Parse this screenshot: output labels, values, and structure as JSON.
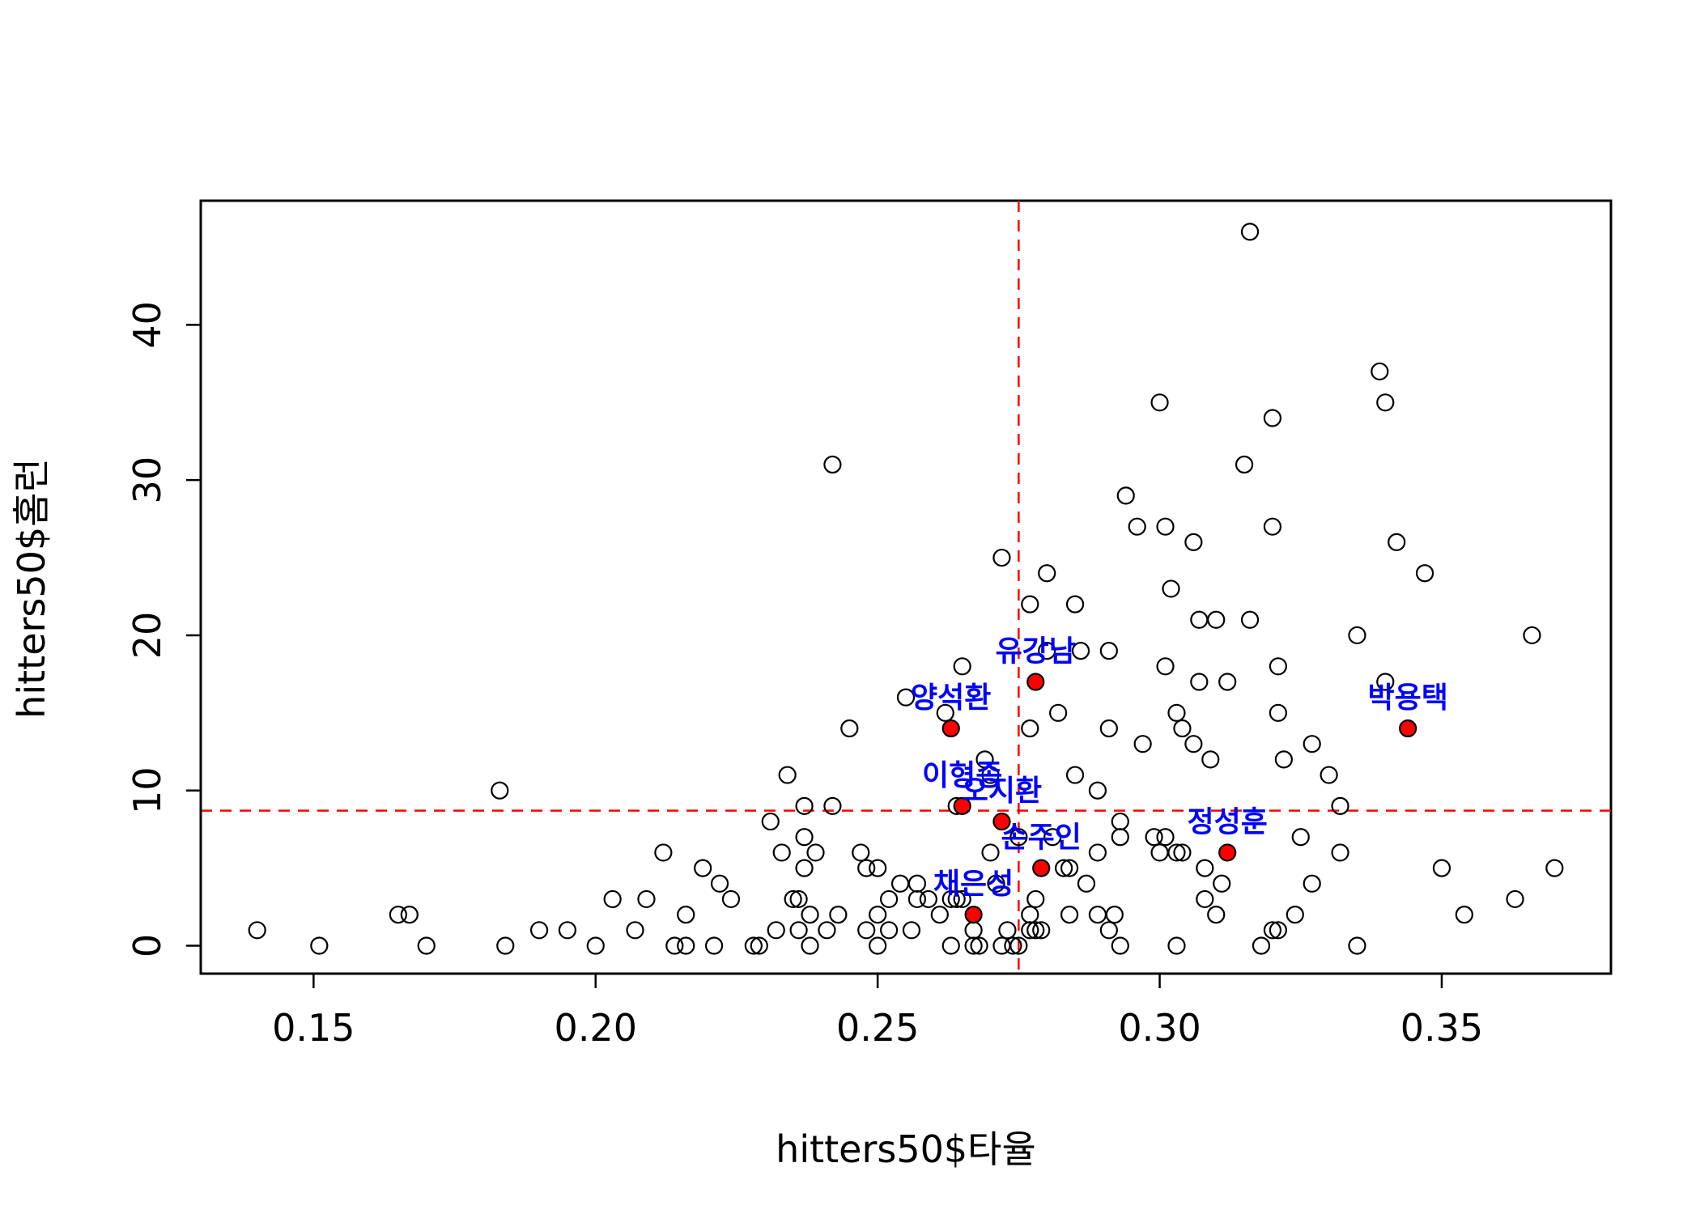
{
  "chart_data": {
    "type": "scatter",
    "title": "",
    "xlabel": "hitters50$타율",
    "ylabel": "hitters50$홈런",
    "xlim": [
      0.13,
      0.38
    ],
    "ylim": [
      -1.8,
      48
    ],
    "xticks": [
      "0.15",
      "0.20",
      "0.25",
      "0.30",
      "0.35"
    ],
    "yticks": [
      "0",
      "10",
      "20",
      "30",
      "40"
    ],
    "grid": false,
    "reference_lines": {
      "v": 0.275,
      "h": 8.7,
      "color": "#ff0000",
      "style": "dashed"
    },
    "point_style": {
      "fill": "none",
      "stroke": "#000000"
    },
    "highlight_style": {
      "fill": "#ff0000",
      "label_color": "#0000ff"
    },
    "points": [
      [
        0.14,
        1
      ],
      [
        0.151,
        0
      ],
      [
        0.165,
        2
      ],
      [
        0.167,
        2
      ],
      [
        0.17,
        0
      ],
      [
        0.183,
        10
      ],
      [
        0.184,
        0
      ],
      [
        0.19,
        1
      ],
      [
        0.195,
        1
      ],
      [
        0.2,
        0
      ],
      [
        0.203,
        3
      ],
      [
        0.207,
        1
      ],
      [
        0.209,
        3
      ],
      [
        0.212,
        6
      ],
      [
        0.214,
        0
      ],
      [
        0.216,
        2
      ],
      [
        0.216,
        0
      ],
      [
        0.219,
        5
      ],
      [
        0.221,
        0
      ],
      [
        0.222,
        4
      ],
      [
        0.224,
        3
      ],
      [
        0.228,
        0
      ],
      [
        0.229,
        0
      ],
      [
        0.231,
        8
      ],
      [
        0.232,
        1
      ],
      [
        0.233,
        6
      ],
      [
        0.234,
        11
      ],
      [
        0.235,
        3
      ],
      [
        0.236,
        3
      ],
      [
        0.236,
        1
      ],
      [
        0.237,
        9
      ],
      [
        0.237,
        7
      ],
      [
        0.237,
        5
      ],
      [
        0.238,
        2
      ],
      [
        0.238,
        0
      ],
      [
        0.239,
        6
      ],
      [
        0.241,
        1
      ],
      [
        0.242,
        9
      ],
      [
        0.242,
        31
      ],
      [
        0.243,
        2
      ],
      [
        0.245,
        14
      ],
      [
        0.247,
        6
      ],
      [
        0.248,
        5
      ],
      [
        0.248,
        1
      ],
      [
        0.25,
        5
      ],
      [
        0.25,
        2
      ],
      [
        0.25,
        0
      ],
      [
        0.252,
        3
      ],
      [
        0.252,
        1
      ],
      [
        0.254,
        4
      ],
      [
        0.255,
        16
      ],
      [
        0.256,
        1
      ],
      [
        0.257,
        3
      ],
      [
        0.257,
        4
      ],
      [
        0.259,
        3
      ],
      [
        0.261,
        2
      ],
      [
        0.262,
        15
      ],
      [
        0.263,
        0
      ],
      [
        0.263,
        3
      ],
      [
        0.264,
        9
      ],
      [
        0.264,
        3
      ],
      [
        0.265,
        18
      ],
      [
        0.265,
        3
      ],
      [
        0.267,
        1
      ],
      [
        0.267,
        0
      ],
      [
        0.268,
        0
      ],
      [
        0.269,
        12
      ],
      [
        0.27,
        6
      ],
      [
        0.27,
        11
      ],
      [
        0.271,
        4
      ],
      [
        0.272,
        25
      ],
      [
        0.272,
        0
      ],
      [
        0.273,
        1
      ],
      [
        0.274,
        0
      ],
      [
        0.275,
        0
      ],
      [
        0.275,
        7
      ],
      [
        0.277,
        2
      ],
      [
        0.277,
        22
      ],
      [
        0.277,
        14
      ],
      [
        0.277,
        1
      ],
      [
        0.278,
        3
      ],
      [
        0.278,
        1
      ],
      [
        0.279,
        1
      ],
      [
        0.28,
        24
      ],
      [
        0.28,
        19
      ],
      [
        0.281,
        7
      ],
      [
        0.282,
        15
      ],
      [
        0.283,
        5
      ],
      [
        0.284,
        2
      ],
      [
        0.284,
        5
      ],
      [
        0.285,
        11
      ],
      [
        0.285,
        22
      ],
      [
        0.286,
        19
      ],
      [
        0.287,
        4
      ],
      [
        0.289,
        10
      ],
      [
        0.289,
        6
      ],
      [
        0.289,
        2
      ],
      [
        0.291,
        19
      ],
      [
        0.291,
        14
      ],
      [
        0.291,
        1
      ],
      [
        0.292,
        2
      ],
      [
        0.293,
        0
      ],
      [
        0.293,
        7
      ],
      [
        0.293,
        8
      ],
      [
        0.294,
        29
      ],
      [
        0.296,
        27
      ],
      [
        0.297,
        13
      ],
      [
        0.299,
        7
      ],
      [
        0.3,
        6
      ],
      [
        0.3,
        35
      ],
      [
        0.301,
        18
      ],
      [
        0.301,
        27
      ],
      [
        0.301,
        7
      ],
      [
        0.302,
        23
      ],
      [
        0.303,
        15
      ],
      [
        0.303,
        6
      ],
      [
        0.303,
        0
      ],
      [
        0.304,
        14
      ],
      [
        0.304,
        6
      ],
      [
        0.306,
        13
      ],
      [
        0.306,
        26
      ],
      [
        0.307,
        21
      ],
      [
        0.307,
        17
      ],
      [
        0.308,
        5
      ],
      [
        0.308,
        3
      ],
      [
        0.309,
        12
      ],
      [
        0.31,
        21
      ],
      [
        0.31,
        2
      ],
      [
        0.311,
        4
      ],
      [
        0.312,
        17
      ],
      [
        0.315,
        31
      ],
      [
        0.316,
        21
      ],
      [
        0.316,
        46
      ],
      [
        0.318,
        0
      ],
      [
        0.32,
        1
      ],
      [
        0.32,
        34
      ],
      [
        0.32,
        27
      ],
      [
        0.321,
        18
      ],
      [
        0.321,
        15
      ],
      [
        0.321,
        1
      ],
      [
        0.322,
        12
      ],
      [
        0.324,
        2
      ],
      [
        0.325,
        7
      ],
      [
        0.327,
        13
      ],
      [
        0.327,
        4
      ],
      [
        0.33,
        11
      ],
      [
        0.332,
        9
      ],
      [
        0.332,
        6
      ],
      [
        0.335,
        20
      ],
      [
        0.335,
        0
      ],
      [
        0.339,
        37
      ],
      [
        0.34,
        17
      ],
      [
        0.34,
        35
      ],
      [
        0.342,
        26
      ],
      [
        0.347,
        24
      ],
      [
        0.35,
        5
      ],
      [
        0.354,
        2
      ],
      [
        0.363,
        3
      ],
      [
        0.366,
        20
      ],
      [
        0.37,
        5
      ]
    ],
    "highlighted": [
      {
        "name": "양석환",
        "x": 0.263,
        "y": 14
      },
      {
        "name": "유강남",
        "x": 0.278,
        "y": 17
      },
      {
        "name": "박용택",
        "x": 0.344,
        "y": 14
      },
      {
        "name": "이형종",
        "x": 0.265,
        "y": 9
      },
      {
        "name": "오지환",
        "x": 0.272,
        "y": 8
      },
      {
        "name": "정성훈",
        "x": 0.312,
        "y": 6
      },
      {
        "name": "손주인",
        "x": 0.279,
        "y": 5
      },
      {
        "name": "채은성",
        "x": 0.267,
        "y": 2
      }
    ]
  }
}
